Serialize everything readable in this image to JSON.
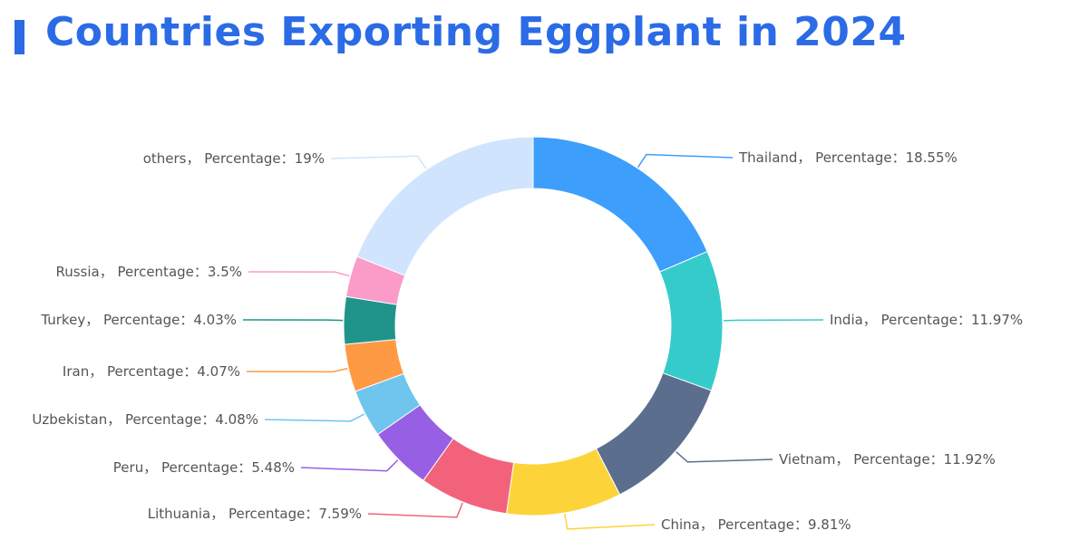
{
  "page": {
    "title": "Countries Exporting Eggplant in 2024",
    "accent_color": "#2b6be6"
  },
  "chart_data": {
    "type": "pie",
    "title": "Countries Exporting Eggplant in 2024",
    "style": "donut",
    "label_template": "{name}， Percentage：{value}%",
    "slices": [
      {
        "name": "Thailand",
        "value": 18.55,
        "color": "#3d9efc"
      },
      {
        "name": "India",
        "value": 11.97,
        "color": "#36cbcb"
      },
      {
        "name": "Vietnam",
        "value": 11.92,
        "color": "#5b6e8e"
      },
      {
        "name": "China",
        "value": 9.81,
        "color": "#fcd43a"
      },
      {
        "name": "Lithuania",
        "value": 7.59,
        "color": "#f2637b"
      },
      {
        "name": "Peru",
        "value": 5.48,
        "color": "#975fe4"
      },
      {
        "name": "Uzbekistan",
        "value": 4.08,
        "color": "#6fc5ee"
      },
      {
        "name": "Iran",
        "value": 4.07,
        "color": "#fe9a43"
      },
      {
        "name": "Turkey",
        "value": 4.03,
        "color": "#20948b"
      },
      {
        "name": "Russia",
        "value": 3.5,
        "color": "#fa9bc8"
      },
      {
        "name": "others",
        "value": 19,
        "color": "#d0e5fd"
      }
    ]
  }
}
